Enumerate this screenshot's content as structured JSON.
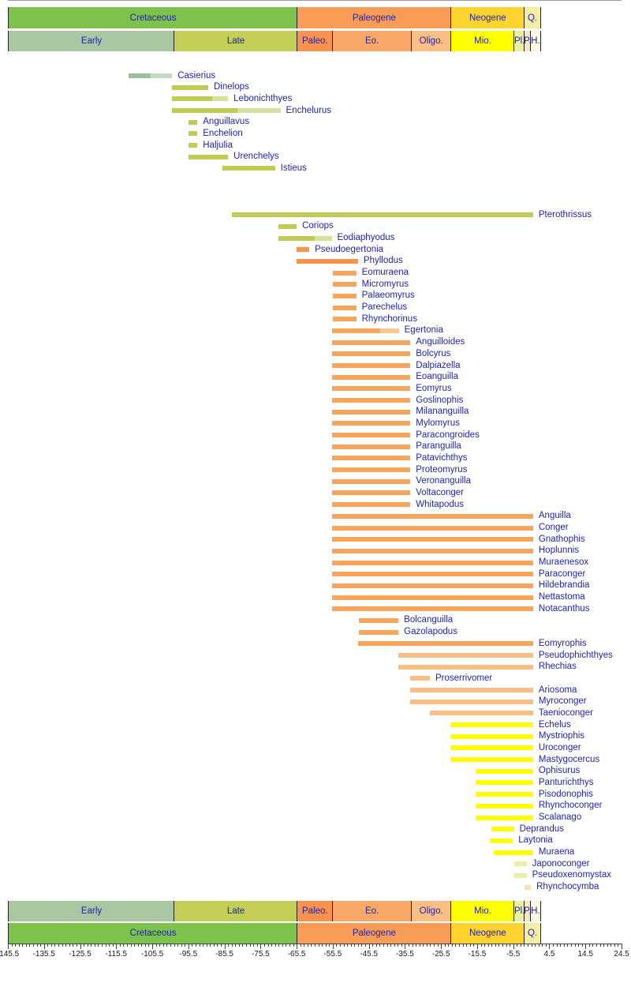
{
  "chart_data": {
    "type": "bar",
    "subtype": "stratigraphic-range-chart",
    "title": "",
    "xlabel": "",
    "xlim": [
      -145.5,
      24.5
    ],
    "x_tick_labels": [
      "-145.5",
      "-135.5",
      "-125.5",
      "-115.5",
      "-105.5",
      "-95.5",
      "-85.5",
      "-75.5",
      "-65.5",
      "-55.5",
      "-45.5",
      "-35.5",
      "-25.5",
      "-15.5",
      "-5.5",
      "4.5",
      "14.5",
      "24.5"
    ],
    "x_major_step": 10,
    "x_minor_step": 1,
    "grid": "off",
    "periods": [
      {
        "label": "Cretaceous",
        "from": -145.5,
        "to": -65.5,
        "color": "cretaceous"
      },
      {
        "label": "Paleogene",
        "from": -65.5,
        "to": -23.0,
        "color": "paleogene"
      },
      {
        "label": "Neogene",
        "from": -23.0,
        "to": -2.6,
        "color": "neogene"
      },
      {
        "label": "Q.",
        "from": -2.6,
        "to": 1.8,
        "color": "quaternary"
      }
    ],
    "epochs": [
      {
        "label": "Early",
        "from": -145.5,
        "to": -99.6,
        "color": "early_cretaceous"
      },
      {
        "label": "Late",
        "from": -99.6,
        "to": -65.5,
        "color": "late_cretaceous"
      },
      {
        "label": "Paleo.",
        "from": -65.5,
        "to": -55.8,
        "color": "paleocene_epoch"
      },
      {
        "label": "Eo.",
        "from": -55.8,
        "to": -33.9,
        "color": "eocene_epoch"
      },
      {
        "label": "Oligo.",
        "from": -33.9,
        "to": -23.0,
        "color": "oligocene_epoch"
      },
      {
        "label": "Mio.",
        "from": -23.0,
        "to": -5.33,
        "color": "miocene_epoch"
      },
      {
        "label": "Pl.",
        "from": -5.33,
        "to": -2.6,
        "color": "pliocene_epoch"
      },
      {
        "label": "P.",
        "from": -2.6,
        "to": -0.9,
        "color": "pleistocene_epoch"
      },
      {
        "label": "H.",
        "from": -0.9,
        "to": 1.8,
        "color": "holocene_epoch"
      }
    ],
    "taxa": [
      {
        "name": "Casierius",
        "from": -112,
        "to": -100,
        "color": "bar_early_cretaceous",
        "row": 0,
        "c2": "#C5D8C2",
        "sp": 0.5
      },
      {
        "name": "Dinelops",
        "from": -100,
        "to": -90,
        "color": "bar_late_cretaceous",
        "row": 1
      },
      {
        "name": "Lebonichthyes",
        "from": -100,
        "to": -84.5,
        "color": "bar_late_cretaceous",
        "row": 2,
        "c2": "#D8E09E",
        "sp": 0.72
      },
      {
        "name": "Enchelurus",
        "from": -100,
        "to": -70,
        "color": "bar_late_cretaceous",
        "row": 3,
        "c2": "#D8E09E",
        "sp": 0.6
      },
      {
        "name": "Anguillavus",
        "from": -95.5,
        "to": -93,
        "color": "bar_late_cretaceous",
        "row": 4
      },
      {
        "name": "Enchelion",
        "from": -95.5,
        "to": -93,
        "color": "bar_late_cretaceous",
        "row": 5
      },
      {
        "name": "Haljulia",
        "from": -95.5,
        "to": -93,
        "color": "bar_late_cretaceous",
        "row": 6
      },
      {
        "name": "Urenchelys",
        "from": -95.5,
        "to": -84.5,
        "color": "bar_late_cretaceous",
        "row": 7
      },
      {
        "name": "Istieus",
        "from": -86,
        "to": -71.5,
        "color": "bar_late_cretaceous",
        "row": 8
      },
      {
        "name": "Pterothrissus",
        "from": -83.5,
        "to": 0,
        "color": "bar_late_cretaceous",
        "row": 12
      },
      {
        "name": "Coriops",
        "from": -70.5,
        "to": -65.5,
        "color": "bar_late_cretaceous",
        "row": 13
      },
      {
        "name": "Eodiaphyodus",
        "from": -70.5,
        "to": -55.8,
        "color": "bar_late_cretaceous",
        "row": 14,
        "c2": "#D8E09E",
        "sp": 0.68
      },
      {
        "name": "Pseudoegertonia",
        "from": -65.5,
        "to": -62,
        "color": "bar_paleocene",
        "row": 15
      },
      {
        "name": "Phyllodus",
        "from": -65.5,
        "to": -48.5,
        "color": "bar_paleocene",
        "row": 16
      },
      {
        "name": "Eomuraena",
        "from": -55.5,
        "to": -49,
        "color": "bar_eocene",
        "row": 17
      },
      {
        "name": "Micromyrus",
        "from": -55.5,
        "to": -49,
        "color": "bar_eocene",
        "row": 18
      },
      {
        "name": "Palaeomyrus",
        "from": -55.5,
        "to": -49,
        "color": "bar_eocene",
        "row": 19
      },
      {
        "name": "Parechelus",
        "from": -55.5,
        "to": -49,
        "color": "bar_eocene",
        "row": 20
      },
      {
        "name": "Rhynchorinus",
        "from": -55.5,
        "to": -49,
        "color": "bar_eocene",
        "row": 21
      },
      {
        "name": "Egertonia",
        "from": -55.8,
        "to": -37.2,
        "color": "bar_eocene",
        "row": 22,
        "c2": "#FAC793",
        "sp": 0.72
      },
      {
        "name": "Anguilloides",
        "from": -55.8,
        "to": -34,
        "color": "bar_eocene",
        "row": 23
      },
      {
        "name": "Bolcyrus",
        "from": -55.8,
        "to": -34,
        "color": "bar_eocene",
        "row": 24
      },
      {
        "name": "Dalpiazella",
        "from": -55.8,
        "to": -34,
        "color": "bar_eocene",
        "row": 25
      },
      {
        "name": "Eoanguilla",
        "from": -55.8,
        "to": -34,
        "color": "bar_eocene",
        "row": 26
      },
      {
        "name": "Eomyrus",
        "from": -55.8,
        "to": -34,
        "color": "bar_eocene",
        "row": 27
      },
      {
        "name": "Goslinophis",
        "from": -55.8,
        "to": -34,
        "color": "bar_eocene",
        "row": 28
      },
      {
        "name": "Milananguilla",
        "from": -55.8,
        "to": -34,
        "color": "bar_eocene",
        "row": 29
      },
      {
        "name": "Mylomyrus",
        "from": -55.8,
        "to": -34,
        "color": "bar_eocene",
        "row": 30
      },
      {
        "name": "Paracongroides",
        "from": -55.8,
        "to": -34,
        "color": "bar_eocene",
        "row": 31
      },
      {
        "name": "Paranguilla",
        "from": -55.8,
        "to": -34,
        "color": "bar_eocene",
        "row": 32
      },
      {
        "name": "Patavichthys",
        "from": -55.8,
        "to": -34,
        "color": "bar_eocene",
        "row": 33
      },
      {
        "name": "Proteomyrus",
        "from": -55.8,
        "to": -34,
        "color": "bar_eocene",
        "row": 34
      },
      {
        "name": "Veronanguilla",
        "from": -55.8,
        "to": -34,
        "color": "bar_eocene",
        "row": 35
      },
      {
        "name": "Voltaconger",
        "from": -55.8,
        "to": -34,
        "color": "bar_eocene",
        "row": 36
      },
      {
        "name": "Whitapodus",
        "from": -55.8,
        "to": -34,
        "color": "bar_eocene",
        "row": 37
      },
      {
        "name": "Anguilla",
        "from": -55.8,
        "to": 0,
        "color": "bar_eocene",
        "row": 38
      },
      {
        "name": "Conger",
        "from": -55.8,
        "to": 0,
        "color": "bar_eocene",
        "row": 39
      },
      {
        "name": "Gnathophis",
        "from": -55.8,
        "to": 0,
        "color": "bar_eocene",
        "row": 40
      },
      {
        "name": "Hoplunnis",
        "from": -55.8,
        "to": 0,
        "color": "bar_eocene",
        "row": 41
      },
      {
        "name": "Muraenesox",
        "from": -55.8,
        "to": 0,
        "color": "bar_eocene",
        "row": 42
      },
      {
        "name": "Paraconger",
        "from": -55.8,
        "to": 0,
        "color": "bar_eocene",
        "row": 43
      },
      {
        "name": "Hildebrandia",
        "from": -55.8,
        "to": 0,
        "color": "bar_eocene",
        "row": 44
      },
      {
        "name": "Nettastoma",
        "from": -55.8,
        "to": 0,
        "color": "bar_eocene",
        "row": 45
      },
      {
        "name": "Notacanthus",
        "from": -55.8,
        "to": 0,
        "color": "bar_eocene",
        "row": 46
      },
      {
        "name": "Bolcanguilla",
        "from": -48.3,
        "to": -37.3,
        "color": "bar_eocene",
        "row": 47
      },
      {
        "name": "Gazolapodus",
        "from": -48.3,
        "to": -37.3,
        "color": "bar_eocene",
        "row": 48
      },
      {
        "name": "Eomyrophis",
        "from": -48.5,
        "to": 0,
        "color": "bar_eocene",
        "row": 49
      },
      {
        "name": "Pseudophichthyes",
        "from": -37.3,
        "to": 0,
        "color": "bar_oligocene",
        "row": 50
      },
      {
        "name": "Rhechias",
        "from": -37.3,
        "to": 0,
        "color": "bar_oligocene",
        "row": 51
      },
      {
        "name": "Proserrivomer",
        "from": -34,
        "to": -28.6,
        "color": "bar_oligocene",
        "row": 52
      },
      {
        "name": "Ariosoma",
        "from": -34,
        "to": 0,
        "color": "bar_oligocene",
        "row": 53
      },
      {
        "name": "Myroconger",
        "from": -34,
        "to": 0,
        "color": "bar_oligocene",
        "row": 54
      },
      {
        "name": "Taenioconger",
        "from": -28.6,
        "to": 0,
        "color": "bar_oligocene",
        "row": 55
      },
      {
        "name": "Echelus",
        "from": -23,
        "to": 0,
        "color": "bar_miocene",
        "row": 56
      },
      {
        "name": "Mystriophis",
        "from": -23,
        "to": 0,
        "color": "bar_miocene",
        "row": 57
      },
      {
        "name": "Uroconger",
        "from": -23,
        "to": 0,
        "color": "bar_miocene",
        "row": 58
      },
      {
        "name": "Mastygocercus",
        "from": -23,
        "to": 0,
        "color": "bar_miocene",
        "row": 59
      },
      {
        "name": "Ophisurus",
        "from": -16,
        "to": 0,
        "color": "bar_miocene",
        "row": 60
      },
      {
        "name": "Panturichthys",
        "from": -16,
        "to": 0,
        "color": "bar_miocene",
        "row": 61
      },
      {
        "name": "Pisodonophis",
        "from": -16,
        "to": 0,
        "color": "bar_miocene",
        "row": 62
      },
      {
        "name": "Rhynchoconger",
        "from": -16,
        "to": 0,
        "color": "bar_miocene",
        "row": 63
      },
      {
        "name": "Scalanago",
        "from": -16,
        "to": 0,
        "color": "bar_miocene",
        "row": 64
      },
      {
        "name": "Deprandus",
        "from": -11.5,
        "to": -5.3,
        "color": "bar_miocene",
        "row": 65
      },
      {
        "name": "Laytonia",
        "from": -12,
        "to": -5.6,
        "color": "bar_miocene",
        "row": 66
      },
      {
        "name": "Muraena",
        "from": -11,
        "to": 0,
        "color": "bar_miocene",
        "row": 67
      },
      {
        "name": "Japonoconger",
        "from": -5.3,
        "to": -1.8,
        "color": "bar_pliocene",
        "row": 68
      },
      {
        "name": "Pseudoxenomystax",
        "from": -5.3,
        "to": -1.8,
        "color": "bar_pliocene",
        "row": 69
      },
      {
        "name": "Rhynchocymba",
        "from": -2.4,
        "to": -0.6,
        "color": "bar_pleistocene",
        "row": 70
      }
    ]
  },
  "palette": {
    "cretaceous": "#7DC24B",
    "paleogene": "#F99C58",
    "neogene": "#FFD42E",
    "quaternary": "#F3F0A5",
    "early_cretaceous": "#A9C8A2",
    "late_cretaceous": "#C2CE55",
    "paleocene_epoch": "#F8924D",
    "eocene_epoch": "#F9A867",
    "oligocene_epoch": "#FBBE84",
    "miocene_epoch": "#FFFF00",
    "pliocene_epoch": "#E9F0A2",
    "pleistocene_epoch": "#F7E9C4",
    "holocene_epoch": "#FCF8E4",
    "bar_early_cretaceous": "#9DBE9B",
    "bar_late_cretaceous": "#BFCB52",
    "bar_paleocene": "#F8934E",
    "bar_eocene": "#F7A55C",
    "bar_oligocene": "#F8BE85",
    "bar_miocene": "#FFFF00",
    "bar_pliocene": "#E9EFA3",
    "bar_pleistocene": "#F2E4B8",
    "label_text": "#2222AA",
    "axis_text": "#1A1A1A"
  }
}
